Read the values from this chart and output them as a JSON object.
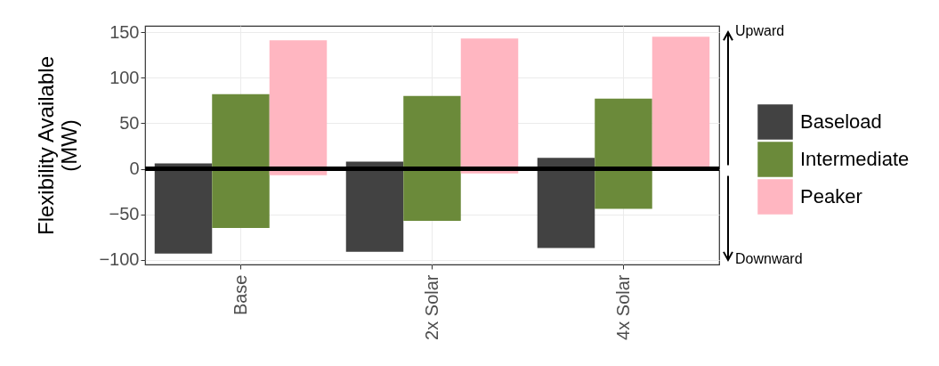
{
  "chart_data": {
    "type": "bar",
    "ylabel": "Flexibility Available (MW)",
    "categories": [
      "Base",
      "2x Solar",
      "4x Solar"
    ],
    "series": [
      {
        "name": "Baseload",
        "color": "#424242",
        "base": [
          -93,
          -91,
          -87
        ],
        "values": [
          99,
          99,
          99
        ]
      },
      {
        "name": "Intermediate",
        "color": "#6b8a3a",
        "base": [
          -65,
          -57,
          -44
        ],
        "values": [
          147,
          137,
          121
        ]
      },
      {
        "name": "Peaker",
        "color": "#ffb6c1",
        "base": [
          -7,
          -5,
          -2
        ],
        "values": [
          148,
          148,
          147
        ]
      }
    ],
    "ylim": [
      -105,
      157
    ],
    "yticks": [
      -100,
      -50,
      0,
      50,
      100,
      150
    ],
    "grid": true,
    "legend": "right",
    "ref_lines": [
      {
        "axis": "y",
        "value": 0,
        "color": "#000000"
      }
    ],
    "annotations": [
      "Upward",
      "Downward"
    ]
  }
}
